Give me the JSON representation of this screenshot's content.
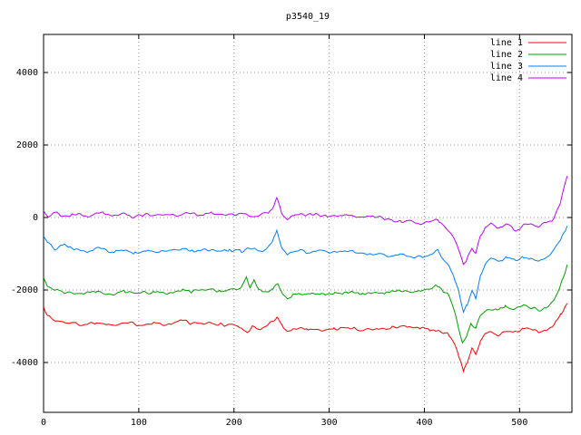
{
  "chart_data": {
    "type": "line",
    "title": "p3540_19",
    "xlabel": "",
    "ylabel": "",
    "xlim": [
      0,
      555
    ],
    "ylim": [
      -5375,
      5050
    ],
    "xticks": [
      0,
      100,
      200,
      300,
      400,
      500
    ],
    "yticks": [
      -4000,
      -2000,
      0,
      2000,
      4000
    ],
    "grid": true,
    "legend_position": "top-right",
    "noise_amplitude": 55,
    "series": [
      {
        "name": "line 1",
        "color": "#ff0000",
        "points": [
          [
            0,
            -2450
          ],
          [
            4,
            -2700
          ],
          [
            12,
            -2850
          ],
          [
            25,
            -2900
          ],
          [
            40,
            -2950
          ],
          [
            55,
            -2900
          ],
          [
            70,
            -2950
          ],
          [
            85,
            -2900
          ],
          [
            100,
            -2950
          ],
          [
            115,
            -2900
          ],
          [
            130,
            -2950
          ],
          [
            148,
            -2830
          ],
          [
            155,
            -2950
          ],
          [
            170,
            -2900
          ],
          [
            185,
            -2950
          ],
          [
            200,
            -2960
          ],
          [
            208,
            -3060
          ],
          [
            214,
            -3160
          ],
          [
            219,
            -3000
          ],
          [
            228,
            -3100
          ],
          [
            238,
            -2900
          ],
          [
            245,
            -2760
          ],
          [
            251,
            -3000
          ],
          [
            256,
            -3180
          ],
          [
            262,
            -3050
          ],
          [
            275,
            -3060
          ],
          [
            290,
            -3100
          ],
          [
            305,
            -3080
          ],
          [
            320,
            -3050
          ],
          [
            335,
            -3100
          ],
          [
            350,
            -3070
          ],
          [
            365,
            -3040
          ],
          [
            380,
            -3000
          ],
          [
            395,
            -3060
          ],
          [
            405,
            -3100
          ],
          [
            415,
            -3140
          ],
          [
            425,
            -3220
          ],
          [
            432,
            -3500
          ],
          [
            437,
            -3900
          ],
          [
            441,
            -4200
          ],
          [
            445,
            -4050
          ],
          [
            450,
            -3620
          ],
          [
            454,
            -3750
          ],
          [
            459,
            -3400
          ],
          [
            464,
            -3220
          ],
          [
            470,
            -3150
          ],
          [
            478,
            -3220
          ],
          [
            487,
            -3120
          ],
          [
            495,
            -3160
          ],
          [
            503,
            -3080
          ],
          [
            512,
            -3060
          ],
          [
            520,
            -3160
          ],
          [
            528,
            -3120
          ],
          [
            536,
            -2950
          ],
          [
            543,
            -2700
          ],
          [
            550,
            -2380
          ]
        ]
      },
      {
        "name": "line 2",
        "color": "#00a000",
        "points": [
          [
            0,
            -1680
          ],
          [
            4,
            -1900
          ],
          [
            12,
            -2000
          ],
          [
            25,
            -2060
          ],
          [
            40,
            -2100
          ],
          [
            55,
            -2050
          ],
          [
            70,
            -2100
          ],
          [
            85,
            -2060
          ],
          [
            100,
            -2100
          ],
          [
            115,
            -2050
          ],
          [
            130,
            -2090
          ],
          [
            145,
            -2000
          ],
          [
            155,
            -2060
          ],
          [
            172,
            -1950
          ],
          [
            185,
            -2050
          ],
          [
            198,
            -2000
          ],
          [
            207,
            -1920
          ],
          [
            213,
            -1650
          ],
          [
            217,
            -1950
          ],
          [
            221,
            -1700
          ],
          [
            226,
            -2010
          ],
          [
            234,
            -2060
          ],
          [
            241,
            -1950
          ],
          [
            246,
            -1820
          ],
          [
            251,
            -2100
          ],
          [
            256,
            -2260
          ],
          [
            262,
            -2110
          ],
          [
            275,
            -2100
          ],
          [
            290,
            -2120
          ],
          [
            305,
            -2090
          ],
          [
            320,
            -2060
          ],
          [
            335,
            -2110
          ],
          [
            350,
            -2080
          ],
          [
            365,
            -2050
          ],
          [
            380,
            -2010
          ],
          [
            392,
            -2060
          ],
          [
            402,
            -2000
          ],
          [
            412,
            -1870
          ],
          [
            418,
            -1990
          ],
          [
            425,
            -2150
          ],
          [
            430,
            -2450
          ],
          [
            435,
            -2900
          ],
          [
            440,
            -3480
          ],
          [
            444,
            -3300
          ],
          [
            449,
            -2920
          ],
          [
            454,
            -3050
          ],
          [
            459,
            -2650
          ],
          [
            466,
            -2520
          ],
          [
            475,
            -2560
          ],
          [
            485,
            -2470
          ],
          [
            494,
            -2520
          ],
          [
            503,
            -2450
          ],
          [
            512,
            -2480
          ],
          [
            520,
            -2570
          ],
          [
            528,
            -2480
          ],
          [
            536,
            -2300
          ],
          [
            543,
            -1900
          ],
          [
            550,
            -1320
          ]
        ]
      },
      {
        "name": "line 3",
        "color": "#0080ff",
        "points": [
          [
            0,
            -520
          ],
          [
            4,
            -700
          ],
          [
            12,
            -860
          ],
          [
            22,
            -760
          ],
          [
            32,
            -900
          ],
          [
            45,
            -950
          ],
          [
            58,
            -860
          ],
          [
            70,
            -950
          ],
          [
            82,
            -900
          ],
          [
            95,
            -1000
          ],
          [
            108,
            -920
          ],
          [
            120,
            -960
          ],
          [
            132,
            -900
          ],
          [
            145,
            -860
          ],
          [
            158,
            -950
          ],
          [
            170,
            -900
          ],
          [
            182,
            -950
          ],
          [
            195,
            -900
          ],
          [
            207,
            -940
          ],
          [
            218,
            -860
          ],
          [
            230,
            -900
          ],
          [
            240,
            -720
          ],
          [
            245,
            -360
          ],
          [
            250,
            -820
          ],
          [
            256,
            -1010
          ],
          [
            263,
            -900
          ],
          [
            275,
            -950
          ],
          [
            288,
            -900
          ],
          [
            300,
            -960
          ],
          [
            312,
            -910
          ],
          [
            325,
            -950
          ],
          [
            338,
            -1000
          ],
          [
            350,
            -1010
          ],
          [
            362,
            -1050
          ],
          [
            375,
            -1000
          ],
          [
            388,
            -1080
          ],
          [
            398,
            -1100
          ],
          [
            408,
            -1020
          ],
          [
            414,
            -910
          ],
          [
            420,
            -1120
          ],
          [
            426,
            -1320
          ],
          [
            431,
            -1620
          ],
          [
            436,
            -2050
          ],
          [
            441,
            -2600
          ],
          [
            445,
            -2420
          ],
          [
            450,
            -2020
          ],
          [
            454,
            -2220
          ],
          [
            459,
            -1600
          ],
          [
            464,
            -1250
          ],
          [
            470,
            -1120
          ],
          [
            478,
            -1220
          ],
          [
            487,
            -1100
          ],
          [
            495,
            -1170
          ],
          [
            503,
            -1090
          ],
          [
            512,
            -1130
          ],
          [
            520,
            -1230
          ],
          [
            528,
            -1120
          ],
          [
            536,
            -900
          ],
          [
            543,
            -600
          ],
          [
            550,
            -230
          ]
        ]
      },
      {
        "name": "line 4",
        "color": "#c000ff",
        "points": [
          [
            0,
            160
          ],
          [
            5,
            40
          ],
          [
            14,
            110
          ],
          [
            24,
            10
          ],
          [
            34,
            100
          ],
          [
            46,
            50
          ],
          [
            58,
            150
          ],
          [
            70,
            50
          ],
          [
            82,
            110
          ],
          [
            94,
            10
          ],
          [
            106,
            100
          ],
          [
            118,
            50
          ],
          [
            130,
            100
          ],
          [
            142,
            20
          ],
          [
            152,
            130
          ],
          [
            164,
            50
          ],
          [
            176,
            110
          ],
          [
            188,
            50
          ],
          [
            200,
            90
          ],
          [
            210,
            110
          ],
          [
            220,
            50
          ],
          [
            230,
            100
          ],
          [
            240,
            210
          ],
          [
            245,
            560
          ],
          [
            250,
            110
          ],
          [
            256,
            -60
          ],
          [
            263,
            90
          ],
          [
            275,
            50
          ],
          [
            288,
            100
          ],
          [
            300,
            20
          ],
          [
            312,
            70
          ],
          [
            325,
            40
          ],
          [
            338,
            0
          ],
          [
            350,
            10
          ],
          [
            362,
            -60
          ],
          [
            375,
            -110
          ],
          [
            388,
            -120
          ],
          [
            398,
            -160
          ],
          [
            408,
            -110
          ],
          [
            414,
            -40
          ],
          [
            420,
            -220
          ],
          [
            426,
            -380
          ],
          [
            431,
            -550
          ],
          [
            436,
            -850
          ],
          [
            441,
            -1300
          ],
          [
            445,
            -1120
          ],
          [
            450,
            -820
          ],
          [
            454,
            -1000
          ],
          [
            459,
            -520
          ],
          [
            464,
            -260
          ],
          [
            470,
            -160
          ],
          [
            478,
            -270
          ],
          [
            486,
            -160
          ],
          [
            494,
            -360
          ],
          [
            500,
            -330
          ],
          [
            506,
            -180
          ],
          [
            512,
            -160
          ],
          [
            520,
            -270
          ],
          [
            528,
            -140
          ],
          [
            536,
            -60
          ],
          [
            543,
            420
          ],
          [
            550,
            1150
          ]
        ]
      }
    ]
  }
}
